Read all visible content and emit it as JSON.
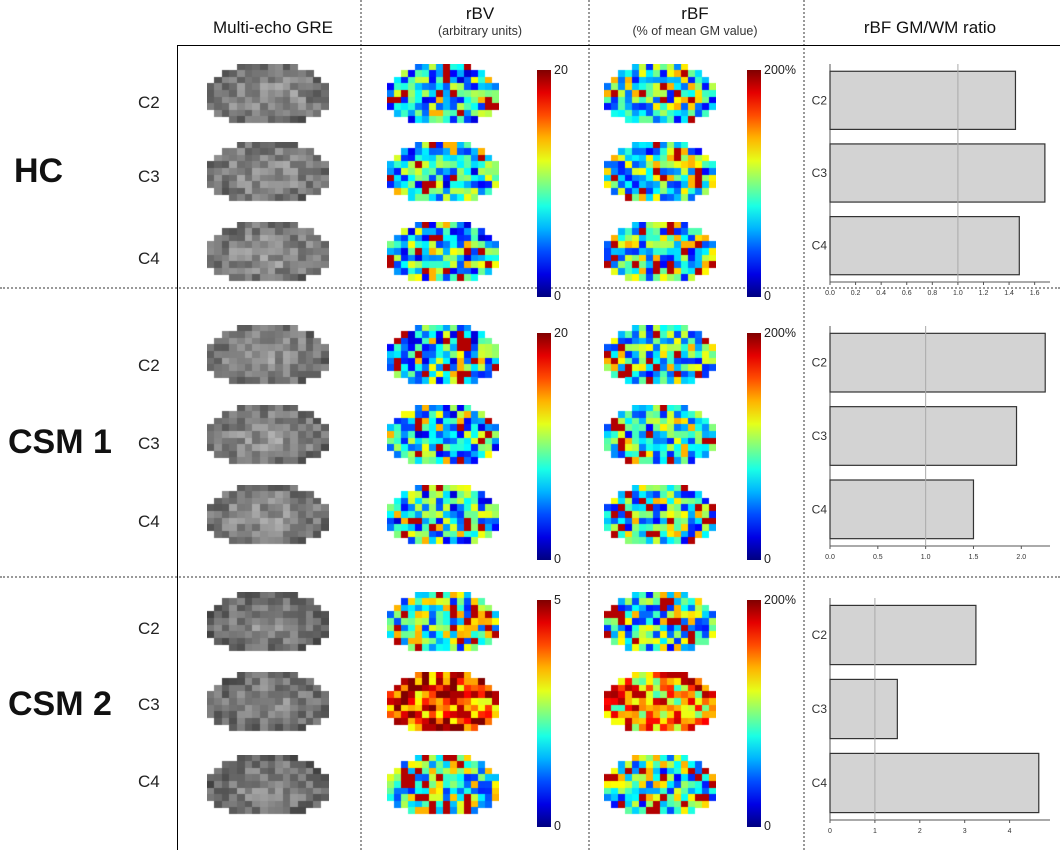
{
  "headers": {
    "gre": "Multi-echo GRE",
    "rbv": "rBV",
    "rbv_sub": "(arbitrary units)",
    "rbf": "rBF",
    "rbf_sub": "(% of mean GM value)",
    "ratio": "rBF GM/WM ratio"
  },
  "colors": {
    "colormap": "jet",
    "bar_fill": "#d3d3d3",
    "bar_edge": "#333333",
    "separator": "#999999"
  },
  "groups": [
    {
      "name": "HC",
      "levels": [
        "C2",
        "C3",
        "C4"
      ],
      "rbv_scale": {
        "max": "20",
        "min": "0"
      },
      "rbf_scale": {
        "max": "200%",
        "min": "0"
      }
    },
    {
      "name": "CSM 1",
      "levels": [
        "C2",
        "C3",
        "C4"
      ],
      "rbv_scale": {
        "max": "20",
        "min": "0"
      },
      "rbf_scale": {
        "max": "200%",
        "min": "0"
      }
    },
    {
      "name": "CSM 2",
      "levels": [
        "C2",
        "C3",
        "C4"
      ],
      "rbv_scale": {
        "max": "5",
        "min": "0"
      },
      "rbf_scale": {
        "max": "200%",
        "min": "0"
      }
    }
  ],
  "chart_data": [
    {
      "type": "bar",
      "orientation": "horizontal",
      "title": "rBF GM/WM ratio",
      "categories": [
        "C2",
        "C3",
        "C4"
      ],
      "values": [
        1.45,
        1.68,
        1.48
      ],
      "xlim": [
        0,
        1.72
      ],
      "ticks": [
        "0.0",
        "0.2",
        "0.4",
        "0.6",
        "0.8",
        "1.0",
        "1.2",
        "1.4",
        "1.6"
      ],
      "reference_line": 1.0,
      "grid": false
    },
    {
      "type": "bar",
      "orientation": "horizontal",
      "title": "rBF GM/WM ratio",
      "categories": [
        "C2",
        "C3",
        "C4"
      ],
      "values": [
        2.25,
        1.95,
        1.5
      ],
      "xlim": [
        0,
        2.3
      ],
      "ticks": [
        "0.0",
        "0.5",
        "1.0",
        "1.5",
        "2.0"
      ],
      "reference_line": 1.0,
      "grid": false
    },
    {
      "type": "bar",
      "orientation": "horizontal",
      "title": "rBF GM/WM ratio",
      "categories": [
        "C2",
        "C3",
        "C4"
      ],
      "values": [
        3.25,
        1.5,
        4.65
      ],
      "xlim": [
        0,
        4.9
      ],
      "ticks": [
        "0",
        "1",
        "2",
        "3",
        "4"
      ],
      "reference_line": 1.0,
      "grid": false
    }
  ]
}
